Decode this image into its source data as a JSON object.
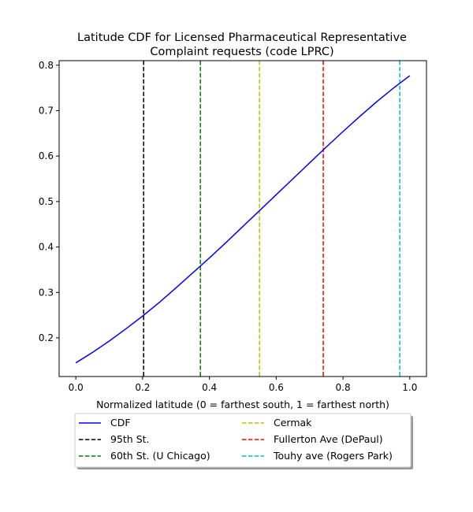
{
  "chart_data": {
    "type": "line",
    "title": "Latitude CDF for Licensed Pharmaceutical Representative",
    "subtitle": "Complaint  requests (code LPRC)",
    "xlabel": "Normalized latitude (0 = farthest south, 1 = farthest north)",
    "ylabel": "",
    "xlim": [
      -0.05,
      1.05
    ],
    "ylim": [
      0.115,
      0.81
    ],
    "grid": false,
    "legend_position": "below",
    "xticks": [
      0.0,
      0.2,
      0.4,
      0.6,
      0.8,
      1.0
    ],
    "xtick_labels": [
      "0.0",
      "0.2",
      "0.4",
      "0.6",
      "0.8",
      "1.0"
    ],
    "yticks": [
      0.2,
      0.3,
      0.4,
      0.5,
      0.6,
      0.7,
      0.8
    ],
    "ytick_labels": [
      "0.2",
      "0.3",
      "0.4",
      "0.5",
      "0.6",
      "0.7",
      "0.8"
    ],
    "series": [
      {
        "name": "CDF",
        "color": "#0000ff",
        "style": "solid",
        "x": [
          0.0,
          0.05,
          0.1,
          0.15,
          0.2,
          0.25,
          0.3,
          0.35,
          0.4,
          0.45,
          0.5,
          0.55,
          0.6,
          0.65,
          0.7,
          0.75,
          0.8,
          0.85,
          0.9,
          0.95,
          1.0
        ],
        "y": [
          0.145,
          0.168,
          0.193,
          0.22,
          0.248,
          0.278,
          0.31,
          0.343,
          0.376,
          0.41,
          0.445,
          0.48,
          0.515,
          0.55,
          0.585,
          0.62,
          0.654,
          0.687,
          0.719,
          0.749,
          0.777
        ]
      }
    ],
    "vlines": [
      {
        "name": "95th St.",
        "x": 0.203,
        "color": "#000000"
      },
      {
        "name": "60th St. (U Chicago)",
        "x": 0.373,
        "color": "#008000"
      },
      {
        "name": "Cermak",
        "x": 0.55,
        "color": "#bfbf00"
      },
      {
        "name": "Fullerton Ave (DePaul)",
        "x": 0.741,
        "color": "#ff0000"
      },
      {
        "name": "Touhy ave (Rogers Park)",
        "x": 0.97,
        "color": "#00bfbf"
      }
    ],
    "legend": {
      "columns": 2,
      "entries": [
        {
          "label": "CDF",
          "color": "#0000ff",
          "style": "solid"
        },
        {
          "label": "95th St.",
          "color": "#000000",
          "style": "dashed"
        },
        {
          "label": "60th St. (U Chicago)",
          "color": "#008000",
          "style": "dashed"
        },
        {
          "label": "Cermak",
          "color": "#bfbf00",
          "style": "dashed"
        },
        {
          "label": "Fullerton Ave (DePaul)",
          "color": "#ff0000",
          "style": "dashed"
        },
        {
          "label": "Touhy ave (Rogers Park)",
          "color": "#00bfbf",
          "style": "dashed"
        }
      ]
    }
  }
}
